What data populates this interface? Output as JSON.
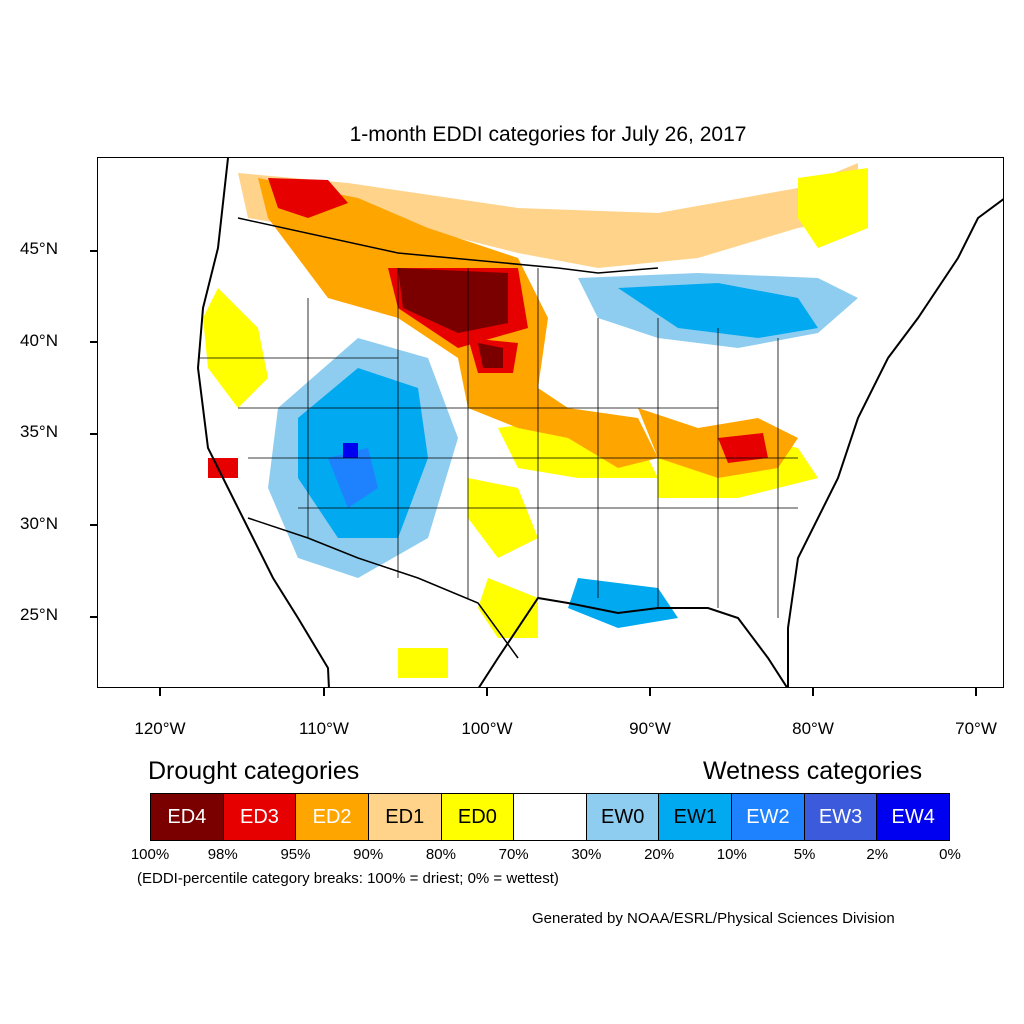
{
  "title": "1-month EDDI categories for July 26, 2017",
  "lat_labels": [
    "45°N",
    "40°N",
    "35°N",
    "30°N",
    "25°N"
  ],
  "lon_labels": [
    "120°W",
    "110°W",
    "100°W",
    "90°W",
    "80°W",
    "70°W"
  ],
  "legend": {
    "drought_heading": "Drought categories",
    "wetness_heading": "Wetness categories",
    "categories": [
      {
        "label": "ED4",
        "color": "#7a0000",
        "text_color": "#ffffff"
      },
      {
        "label": "ED3",
        "color": "#e60000",
        "text_color": "#ffffff"
      },
      {
        "label": "ED2",
        "color": "#ffa500",
        "text_color": "#ffffff"
      },
      {
        "label": "ED1",
        "color": "#ffd38a",
        "text_color": "#000000"
      },
      {
        "label": "ED0",
        "color": "#ffff00",
        "text_color": "#000000"
      },
      {
        "label": "",
        "color": "#ffffff",
        "text_color": "#000000"
      },
      {
        "label": "EW0",
        "color": "#8ecdf0",
        "text_color": "#000000"
      },
      {
        "label": "EW1",
        "color": "#00a9f0",
        "text_color": "#000000"
      },
      {
        "label": "EW2",
        "color": "#1e82ff",
        "text_color": "#ffffff"
      },
      {
        "label": "EW3",
        "color": "#3c5adc",
        "text_color": "#ffffff"
      },
      {
        "label": "EW4",
        "color": "#0000f0",
        "text_color": "#ffffff"
      }
    ],
    "percentiles": [
      "100%",
      "98%",
      "95%",
      "90%",
      "80%",
      "70%",
      "30%",
      "20%",
      "10%",
      "5%",
      "2%",
      "0%"
    ],
    "note": "(EDDI-percentile category breaks: 100% = driest; 0% = wettest)"
  },
  "credit": "Generated by NOAA/ESRL/Physical Sciences Division"
}
